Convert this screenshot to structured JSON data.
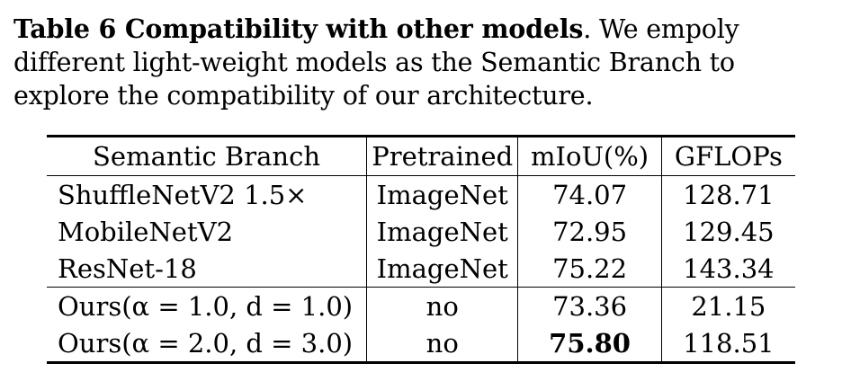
{
  "caption": {
    "label": "Table 6 Compatibility with other models",
    "text": ". We empoly different light-weight models as the Semantic Branch to explore the compatibility of our architecture."
  },
  "table": {
    "headers": [
      "Semantic Branch",
      "Pretrained",
      "mIoU(%)",
      "GFLOPs"
    ],
    "rows": [
      {
        "branch": "ShuffleNetV2 1.5×",
        "pretrained": "ImageNet",
        "miou": "74.07",
        "gflops": "128.71"
      },
      {
        "branch": "MobileNetV2",
        "pretrained": "ImageNet",
        "miou": "72.95",
        "gflops": "129.45"
      },
      {
        "branch": "ResNet-18",
        "pretrained": "ImageNet",
        "miou": "75.22",
        "gflops": "143.34"
      },
      {
        "branch": "Ours(α = 1.0, d = 1.0)",
        "pretrained": "no",
        "miou": "73.36",
        "gflops": "21.15"
      },
      {
        "branch": "Ours(α = 2.0, d = 3.0)",
        "pretrained": "no",
        "miou": "75.80",
        "gflops": "118.51"
      }
    ]
  }
}
